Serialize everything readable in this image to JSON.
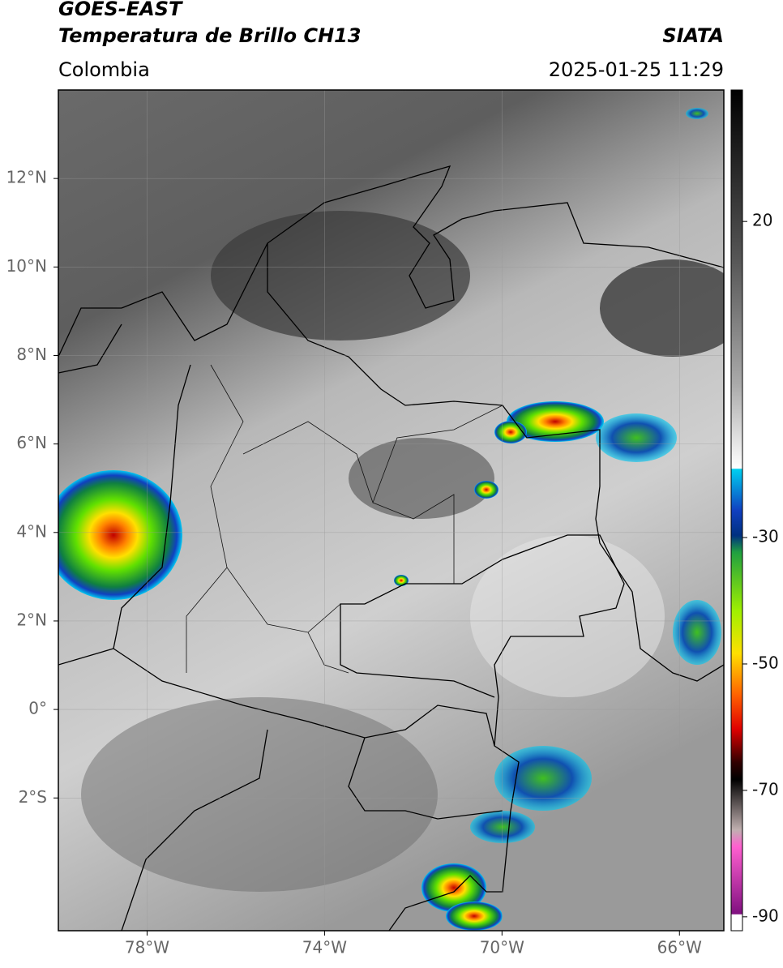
{
  "header": {
    "satellite": "GOES-EAST",
    "product": "Temperatura de Brillo CH13",
    "region": "Colombia",
    "source": "SIATA",
    "timestamp": "2025-01-25 11:29"
  },
  "map": {
    "xlim": [
      -80,
      -65
    ],
    "ylim": [
      -5,
      14
    ],
    "xticks": [
      {
        "value": -78,
        "label": "78°W"
      },
      {
        "value": -74,
        "label": "74°W"
      },
      {
        "value": -70,
        "label": "70°W"
      },
      {
        "value": -66,
        "label": "66°W"
      }
    ],
    "yticks": [
      {
        "value": 12,
        "label": "12°N"
      },
      {
        "value": 10,
        "label": "10°N"
      },
      {
        "value": 8,
        "label": "8°N"
      },
      {
        "value": 6,
        "label": "6°N"
      },
      {
        "value": 4,
        "label": "4°N"
      },
      {
        "value": 2,
        "label": "2°N"
      },
      {
        "value": 0,
        "label": "0°"
      },
      {
        "value": -2,
        "label": "2°S"
      }
    ],
    "grid": true
  },
  "colorbar": {
    "lim": [
      -92.2,
      40.8
    ],
    "ticks": [
      20,
      -30,
      -50,
      -70,
      -90
    ]
  }
}
